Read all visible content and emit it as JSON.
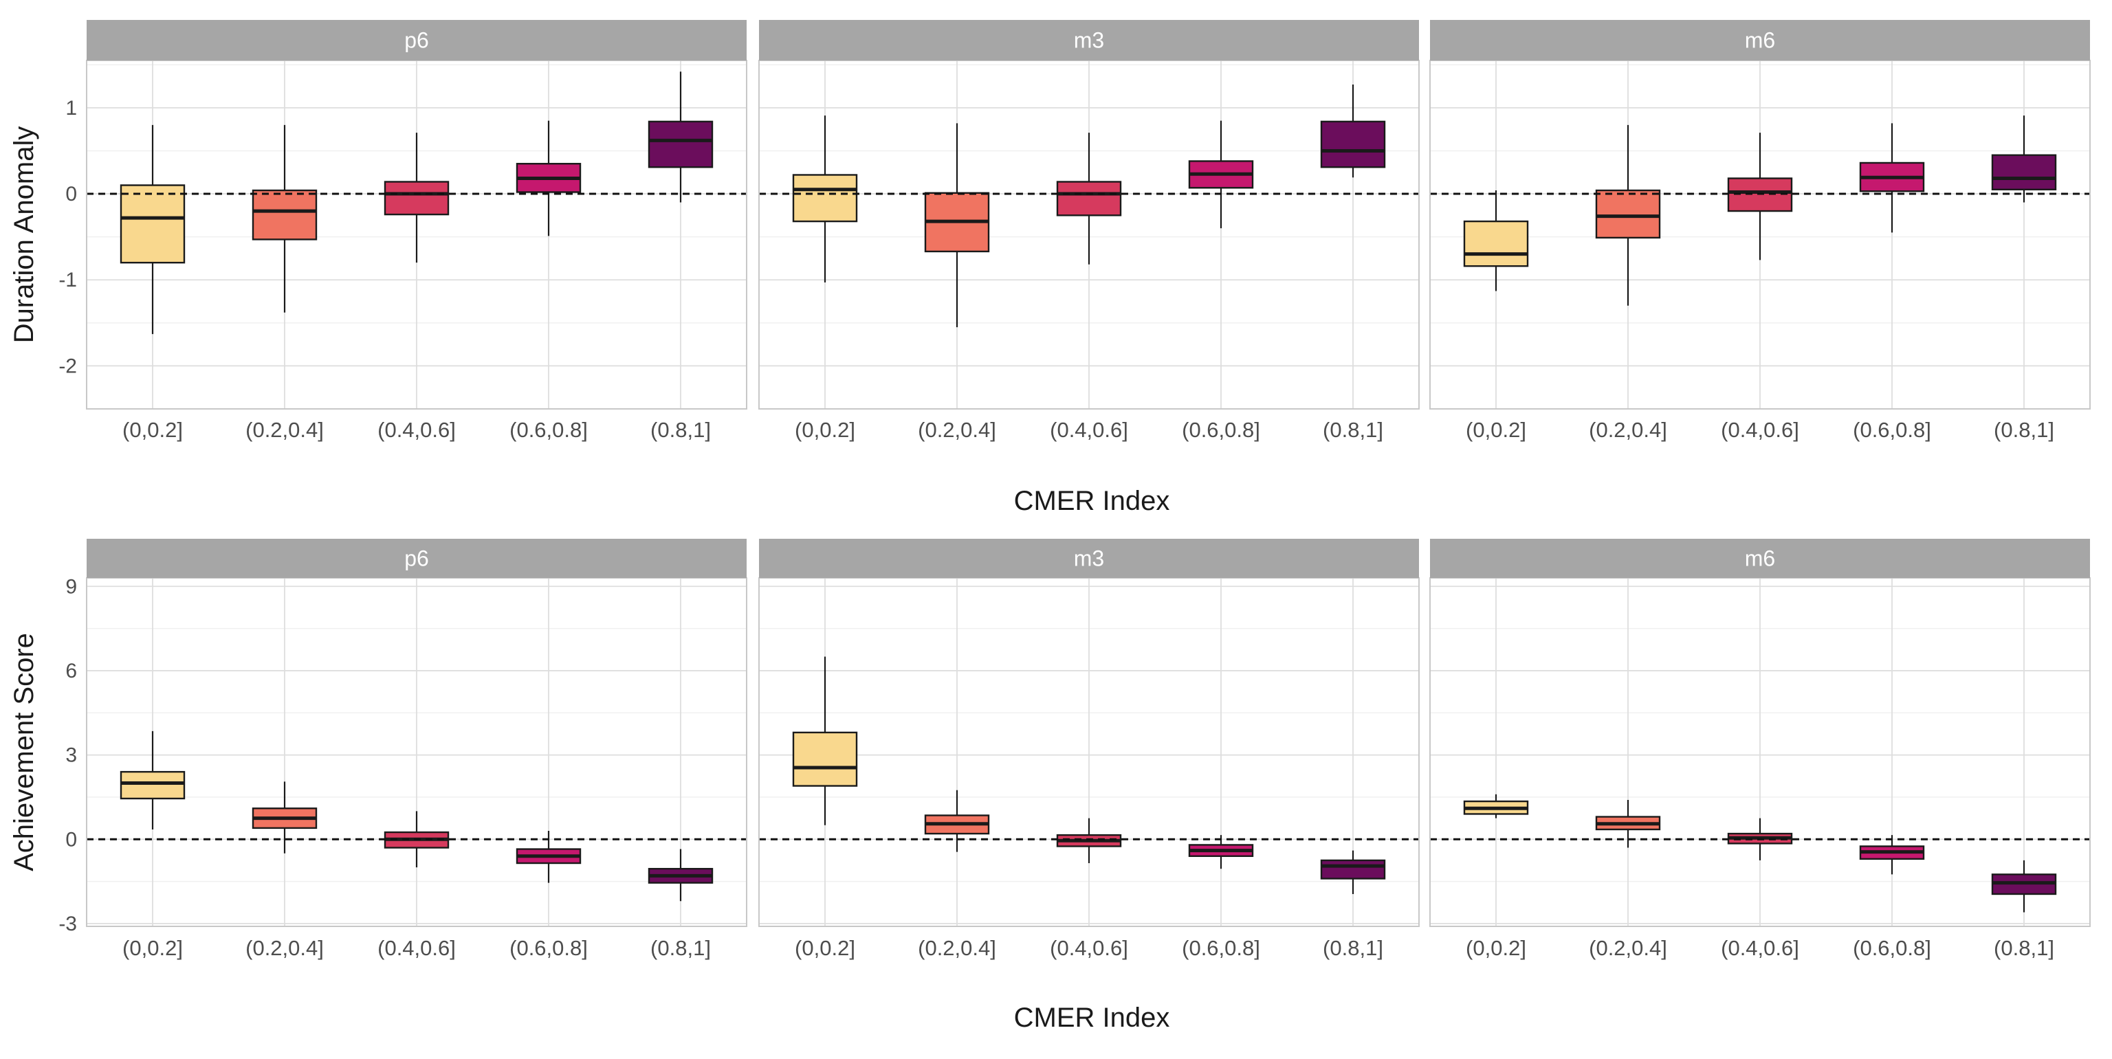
{
  "chart_data": {
    "type": "box",
    "categories": [
      "(0,0.2]",
      "(0.2,0.4]",
      "(0.4,0.6]",
      "(0.6,0.8]",
      "(0.8,1]"
    ],
    "colors": [
      "#F9D88E",
      "#F07461",
      "#D63A5E",
      "#C5186E",
      "#6B0D5C"
    ],
    "reference_line": 0,
    "grid": true,
    "rows": [
      {
        "ylabel": "Duration Anomaly",
        "xlabel": "CMER Index",
        "ylim": [
          -2.5,
          1.55
        ],
        "yticks": [
          -2,
          -1,
          0,
          1
        ],
        "ytick_labels": [
          "-2",
          "-1",
          "0",
          "1"
        ],
        "panels": [
          {
            "title": "p6",
            "boxes": [
              {
                "q1": -0.8,
                "median": -0.28,
                "q3": 0.1,
                "lower": -1.63,
                "upper": 0.8
              },
              {
                "q1": -0.53,
                "median": -0.2,
                "q3": 0.04,
                "lower": -1.38,
                "upper": 0.8
              },
              {
                "q1": -0.24,
                "median": 0.0,
                "q3": 0.14,
                "lower": -0.8,
                "upper": 0.71
              },
              {
                "q1": 0.02,
                "median": 0.18,
                "q3": 0.35,
                "lower": -0.49,
                "upper": 0.85
              },
              {
                "q1": 0.31,
                "median": 0.62,
                "q3": 0.84,
                "lower": -0.1,
                "upper": 1.42
              }
            ]
          },
          {
            "title": "m3",
            "boxes": [
              {
                "q1": -0.32,
                "median": 0.05,
                "q3": 0.22,
                "lower": -1.03,
                "upper": 0.91
              },
              {
                "q1": -0.67,
                "median": -0.32,
                "q3": 0.01,
                "lower": -1.55,
                "upper": 0.82
              },
              {
                "q1": -0.25,
                "median": 0.0,
                "q3": 0.14,
                "lower": -0.82,
                "upper": 0.71
              },
              {
                "q1": 0.07,
                "median": 0.23,
                "q3": 0.38,
                "lower": -0.4,
                "upper": 0.85
              },
              {
                "q1": 0.31,
                "median": 0.5,
                "q3": 0.84,
                "lower": 0.19,
                "upper": 1.27
              }
            ]
          },
          {
            "title": "m6",
            "boxes": [
              {
                "q1": -0.84,
                "median": -0.7,
                "q3": -0.32,
                "lower": -1.13,
                "upper": 0.04
              },
              {
                "q1": -0.51,
                "median": -0.26,
                "q3": 0.04,
                "lower": -1.3,
                "upper": 0.8
              },
              {
                "q1": -0.2,
                "median": 0.02,
                "q3": 0.18,
                "lower": -0.77,
                "upper": 0.71
              },
              {
                "q1": 0.03,
                "median": 0.19,
                "q3": 0.36,
                "lower": -0.45,
                "upper": 0.82
              },
              {
                "q1": 0.05,
                "median": 0.18,
                "q3": 0.45,
                "lower": -0.1,
                "upper": 0.91
              }
            ]
          }
        ]
      },
      {
        "ylabel": "Achievement Score",
        "xlabel": "CMER Index",
        "ylim": [
          -3.1,
          9.3
        ],
        "yticks": [
          -3,
          0,
          3,
          6,
          9
        ],
        "ytick_labels": [
          "-3",
          "0",
          "3",
          "6",
          "9"
        ],
        "panels": [
          {
            "title": "p6",
            "boxes": [
              {
                "q1": 1.45,
                "median": 2.0,
                "q3": 2.4,
                "lower": 0.35,
                "upper": 3.85
              },
              {
                "q1": 0.4,
                "median": 0.75,
                "q3": 1.1,
                "lower": -0.5,
                "upper": 2.05
              },
              {
                "q1": -0.3,
                "median": 0.0,
                "q3": 0.25,
                "lower": -1.0,
                "upper": 1.0
              },
              {
                "q1": -0.85,
                "median": -0.6,
                "q3": -0.35,
                "lower": -1.55,
                "upper": 0.3
              },
              {
                "q1": -1.55,
                "median": -1.3,
                "q3": -1.05,
                "lower": -2.2,
                "upper": -0.35
              }
            ]
          },
          {
            "title": "m3",
            "boxes": [
              {
                "q1": 1.9,
                "median": 2.55,
                "q3": 3.8,
                "lower": 0.5,
                "upper": 6.5
              },
              {
                "q1": 0.2,
                "median": 0.55,
                "q3": 0.85,
                "lower": -0.45,
                "upper": 1.75
              },
              {
                "q1": -0.25,
                "median": -0.05,
                "q3": 0.15,
                "lower": -0.85,
                "upper": 0.75
              },
              {
                "q1": -0.6,
                "median": -0.4,
                "q3": -0.2,
                "lower": -1.05,
                "upper": 0.15
              },
              {
                "q1": -1.4,
                "median": -0.95,
                "q3": -0.75,
                "lower": -1.95,
                "upper": -0.4
              }
            ]
          },
          {
            "title": "m6",
            "boxes": [
              {
                "q1": 0.9,
                "median": 1.1,
                "q3": 1.35,
                "lower": 0.75,
                "upper": 1.6
              },
              {
                "q1": 0.35,
                "median": 0.55,
                "q3": 0.8,
                "lower": -0.3,
                "upper": 1.4
              },
              {
                "q1": -0.15,
                "median": 0.05,
                "q3": 0.2,
                "lower": -0.75,
                "upper": 0.75
              },
              {
                "q1": -0.7,
                "median": -0.45,
                "q3": -0.25,
                "lower": -1.25,
                "upper": 0.15
              },
              {
                "q1": -1.95,
                "median": -1.55,
                "q3": -1.25,
                "lower": -2.6,
                "upper": -0.75
              }
            ]
          }
        ]
      }
    ]
  }
}
